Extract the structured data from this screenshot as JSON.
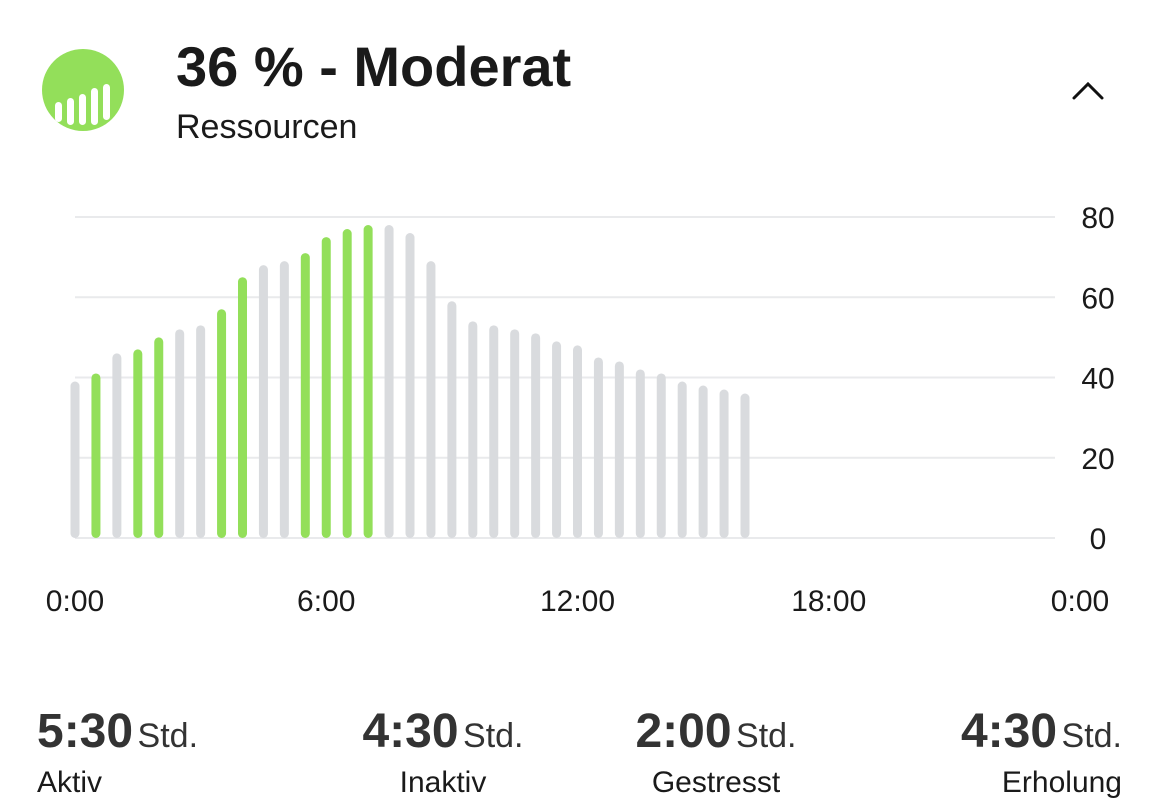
{
  "header": {
    "title": "36 % - Moderat",
    "subtitle": "Ressourcen"
  },
  "chart_data": {
    "type": "bar",
    "x": [
      0,
      0.5,
      1,
      1.5,
      2,
      2.5,
      3,
      3.5,
      4,
      4.5,
      5,
      5.5,
      6,
      6.5,
      7,
      7.5,
      8,
      8.5,
      9,
      9.5,
      10,
      10.5,
      11,
      11.5,
      12,
      12.5,
      13,
      13.5,
      14,
      14.5,
      15,
      15.5,
      16
    ],
    "values": [
      39,
      41,
      46,
      47,
      50,
      52,
      53,
      57,
      65,
      68,
      69,
      71,
      75,
      77,
      78,
      78,
      76,
      69,
      59,
      54,
      53,
      52,
      51,
      49,
      48,
      45,
      44,
      42,
      41,
      39,
      38,
      37,
      36
    ],
    "colors": [
      "#d9dbde",
      "#93df5a",
      "#d9dbde",
      "#93df5a",
      "#93df5a",
      "#d9dbde",
      "#d9dbde",
      "#93df5a",
      "#93df5a",
      "#d9dbde",
      "#d9dbde",
      "#93df5a",
      "#93df5a",
      "#93df5a",
      "#93df5a",
      "#d9dbde",
      "#d9dbde",
      "#d9dbde",
      "#d9dbde",
      "#d9dbde",
      "#d9dbde",
      "#d9dbde",
      "#d9dbde",
      "#d9dbde",
      "#d9dbde",
      "#d9dbde",
      "#d9dbde",
      "#d9dbde",
      "#d9dbde",
      "#d9dbde",
      "#d9dbde",
      "#d9dbde",
      "#d9dbde"
    ],
    "xlim": [
      0,
      24
    ],
    "xticks": [
      {
        "value": 0,
        "label": "0:00"
      },
      {
        "value": 6,
        "label": "6:00"
      },
      {
        "value": 12,
        "label": "12:00"
      },
      {
        "value": 18,
        "label": "18:00"
      },
      {
        "value": 24,
        "label": "0:00"
      }
    ],
    "ylim": [
      0,
      80
    ],
    "yticks": [
      0,
      20,
      40,
      60,
      80
    ],
    "grid": true
  },
  "stats": [
    {
      "value": "5:30",
      "unit": "Std.",
      "label": "Aktiv"
    },
    {
      "value": "4:30",
      "unit": "Std.",
      "label": "Inaktiv"
    },
    {
      "value": "2:00",
      "unit": "Std.",
      "label": "Gestresst"
    },
    {
      "value": "4:30",
      "unit": "Std.",
      "label": "Erholung"
    }
  ]
}
